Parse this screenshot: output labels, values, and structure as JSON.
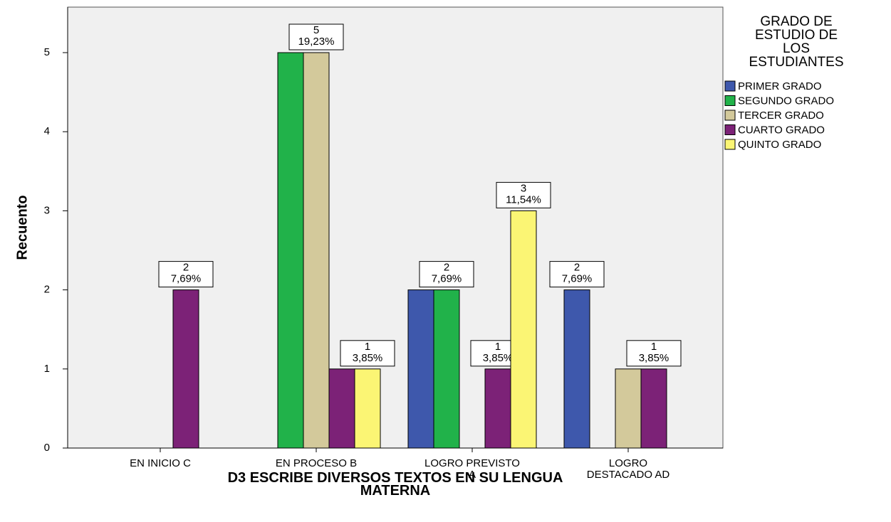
{
  "chart_data": {
    "type": "bar",
    "x_label": "D3 ESCRIBE DIVERSOS TEXTOS EN SU LENGUA MATERNA",
    "y_label": "Recuento",
    "legend_title": "GRADO DE ESTUDIO DE LOS ESTUDIANTES",
    "legend": "right",
    "categories": [
      "EN INICIO C",
      "EN PROCESO B",
      "LOGRO PREVISTO A",
      "LOGRO DESTACADO AD"
    ],
    "series": [
      {
        "name": "PRIMER GRADO",
        "color": "#3e58ac",
        "values": [
          null,
          null,
          2,
          2
        ],
        "percent_labels": [
          null,
          null,
          null,
          "7,69%"
        ]
      },
      {
        "name": "SEGUNDO GRADO",
        "color": "#21b24a",
        "values": [
          null,
          5,
          2,
          null
        ],
        "percent_labels": [
          null,
          null,
          "7,69%",
          null
        ]
      },
      {
        "name": "TERCER GRADO",
        "color": "#d3c99b",
        "values": [
          null,
          5,
          null,
          1
        ],
        "percent_labels": [
          null,
          "19,23%",
          null,
          null
        ]
      },
      {
        "name": "CUARTO GRADO",
        "color": "#7c2277",
        "values": [
          2,
          1,
          1,
          1
        ],
        "percent_labels": [
          "7,69%",
          null,
          "3,85%",
          "3,85%"
        ]
      },
      {
        "name": "QUINTO GRADO",
        "color": "#fbf574",
        "values": [
          null,
          1,
          3,
          null
        ],
        "percent_labels": [
          null,
          "3,85%",
          "11,54%",
          null
        ]
      }
    ],
    "ylim": [
      0,
      5.6
    ],
    "yticks": [
      0,
      1,
      2,
      3,
      4,
      5
    ]
  }
}
